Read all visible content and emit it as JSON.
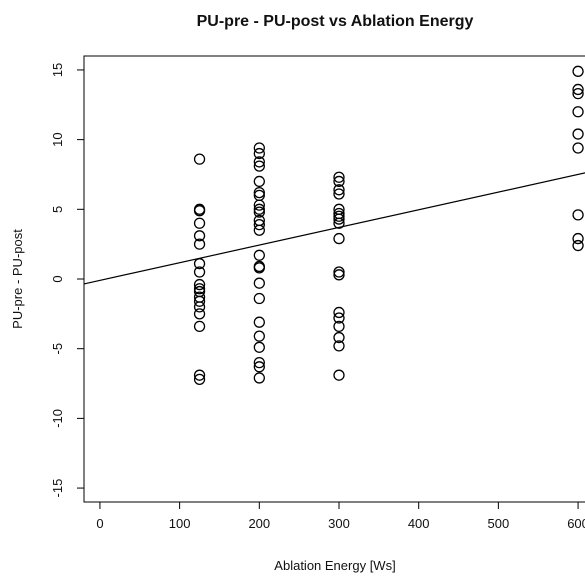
{
  "chart_data": {
    "type": "scatter",
    "title": "PU-pre - PU-post vs Ablation Energy",
    "xlabel": "Ablation Energy [Ws]",
    "ylabel": "PU-pre - PU-post",
    "xlim": [
      -20,
      620
    ],
    "ylim": [
      -16,
      16
    ],
    "x_ticks": [
      0,
      100,
      200,
      300,
      400,
      500,
      600
    ],
    "y_ticks": [
      -15,
      -10,
      -5,
      0,
      5,
      10,
      15
    ],
    "regression_line": {
      "intercept": -0.1,
      "slope": 0.01267
    },
    "points": [
      [
        125,
        8.6
      ],
      [
        125,
        5.0
      ],
      [
        125,
        4.9
      ],
      [
        125,
        4.0
      ],
      [
        125,
        3.1
      ],
      [
        125,
        2.5
      ],
      [
        125,
        1.1
      ],
      [
        125,
        0.5
      ],
      [
        125,
        -0.4
      ],
      [
        125,
        -0.7
      ],
      [
        125,
        -0.9
      ],
      [
        125,
        -1.3
      ],
      [
        125,
        -1.6
      ],
      [
        125,
        -2.0
      ],
      [
        125,
        -2.5
      ],
      [
        125,
        -3.4
      ],
      [
        125,
        -6.9
      ],
      [
        125,
        -7.2
      ],
      [
        200,
        9.4
      ],
      [
        200,
        9.0
      ],
      [
        200,
        8.4
      ],
      [
        200,
        8.1
      ],
      [
        200,
        7.0
      ],
      [
        200,
        6.2
      ],
      [
        200,
        6.0
      ],
      [
        200,
        5.3
      ],
      [
        200,
        5.0
      ],
      [
        200,
        4.8
      ],
      [
        200,
        4.2
      ],
      [
        200,
        3.9
      ],
      [
        200,
        3.5
      ],
      [
        200,
        1.7
      ],
      [
        200,
        0.9
      ],
      [
        200,
        0.8
      ],
      [
        200,
        -0.3
      ],
      [
        200,
        -1.4
      ],
      [
        200,
        -3.1
      ],
      [
        200,
        -4.1
      ],
      [
        200,
        -4.9
      ],
      [
        200,
        -6.0
      ],
      [
        200,
        -6.3
      ],
      [
        200,
        -7.1
      ],
      [
        300,
        7.3
      ],
      [
        300,
        7.0
      ],
      [
        300,
        6.4
      ],
      [
        300,
        6.1
      ],
      [
        300,
        5.0
      ],
      [
        300,
        4.7
      ],
      [
        300,
        4.5
      ],
      [
        300,
        4.3
      ],
      [
        300,
        4.0
      ],
      [
        300,
        2.9
      ],
      [
        300,
        0.5
      ],
      [
        300,
        0.3
      ],
      [
        300,
        -2.4
      ],
      [
        300,
        -2.8
      ],
      [
        300,
        -3.4
      ],
      [
        300,
        -4.2
      ],
      [
        300,
        -4.8
      ],
      [
        300,
        -6.9
      ],
      [
        600,
        14.9
      ],
      [
        600,
        13.6
      ],
      [
        600,
        13.3
      ],
      [
        600,
        12.0
      ],
      [
        600,
        10.4
      ],
      [
        600,
        9.4
      ],
      [
        600,
        4.6
      ],
      [
        600,
        2.9
      ],
      [
        600,
        2.4
      ]
    ]
  }
}
